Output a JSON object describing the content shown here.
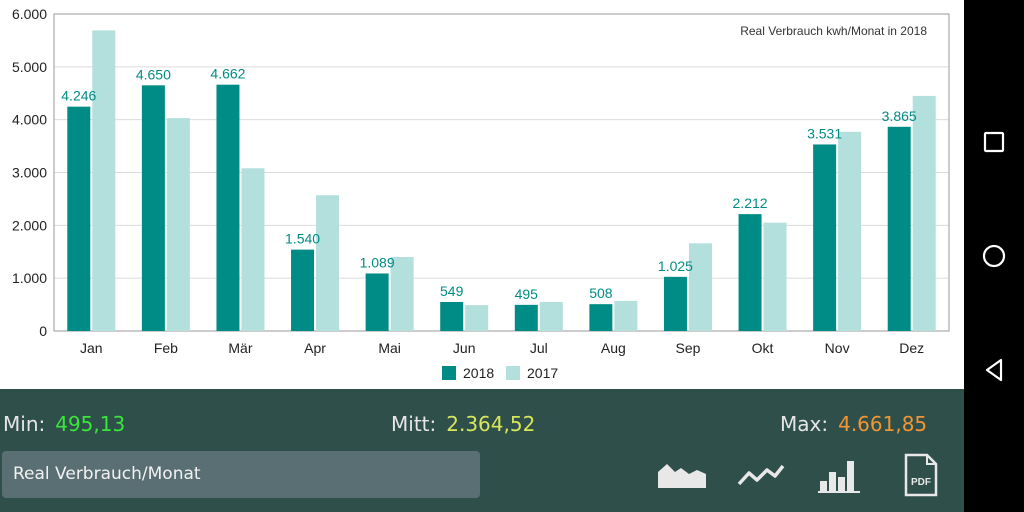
{
  "chart_data": {
    "type": "bar",
    "title": "Real Verbrauch  kwh/Monat in 2018",
    "categories": [
      "Jan",
      "Feb",
      "Mär",
      "Apr",
      "Mai",
      "Jun",
      "Jul",
      "Aug",
      "Sep",
      "Okt",
      "Nov",
      "Dez"
    ],
    "series": [
      {
        "name": "2018",
        "color": "#008c86",
        "values": [
          4246,
          4650,
          4662,
          1540,
          1089,
          549,
          495,
          508,
          1025,
          2212,
          3531,
          3865
        ],
        "labels": [
          "4.246",
          "4.650",
          "4.662",
          "1.540",
          "1.089",
          "549",
          "495",
          "508",
          "1.025",
          "2.212",
          "3.531",
          "3.865"
        ]
      },
      {
        "name": "2017",
        "color": "#b3dfdd",
        "values": [
          5690,
          4030,
          3080,
          2570,
          1400,
          490,
          550,
          570,
          1660,
          2050,
          3770,
          4450
        ]
      }
    ],
    "yticks": [
      0,
      1000,
      2000,
      3000,
      4000,
      5000,
      6000
    ],
    "ytick_labels": [
      "0",
      "1.000",
      "2.000",
      "3.000",
      "4.000",
      "5.000",
      "6.000"
    ],
    "ylim": [
      0,
      6000
    ],
    "legend_position": "bottom-center",
    "grid": true
  },
  "stats": {
    "min_label": "Min:",
    "min_value": "495,13",
    "min_color": "#39e639",
    "mitt_label": "Mitt:",
    "mitt_value": "2.364,52",
    "mitt_color": "#d8e65a",
    "max_label": "Max:",
    "max_value": "4.661,85",
    "max_color": "#f29533"
  },
  "selector": {
    "label": "Real Verbrauch/Monat"
  },
  "toolbar": {
    "pdf_label": "PDF"
  },
  "icons": {
    "area": "area-chart-icon",
    "line": "line-chart-icon",
    "bar": "bar-chart-icon",
    "pdf": "pdf-icon"
  }
}
